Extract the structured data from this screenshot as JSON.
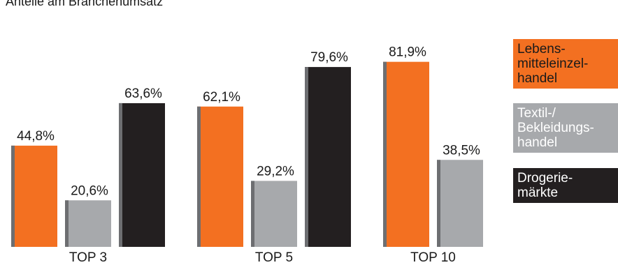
{
  "chart_data": {
    "type": "bar",
    "title": "Anteile am Branchenumsatz",
    "categories": [
      "TOP 3",
      "TOP 5",
      "TOP 10"
    ],
    "series": [
      {
        "name": "Lebens-\nmitteleinzel-\nhandel",
        "color": "#f37021",
        "text_color": "#1a1a1a",
        "values": [
          44.8,
          62.1,
          81.9
        ],
        "labels": [
          "44,8%",
          "62,1%",
          "81,9%"
        ]
      },
      {
        "name": "Textil-/\nBekleidungs-\nhandel",
        "color": "#a7a9ac",
        "text_color": "#ffffff",
        "values": [
          20.6,
          29.2,
          38.5
        ],
        "labels": [
          "20,6%",
          "29,2%",
          "38,5%"
        ]
      },
      {
        "name": "Drogerie-\nmärkte",
        "color": "#231f20",
        "text_color": "#ffffff",
        "values": [
          63.6,
          79.6,
          null
        ],
        "labels": [
          "63,6%",
          "79,6%",
          ""
        ]
      }
    ],
    "ylim": [
      0,
      100
    ],
    "grid": false,
    "legend": "right"
  }
}
